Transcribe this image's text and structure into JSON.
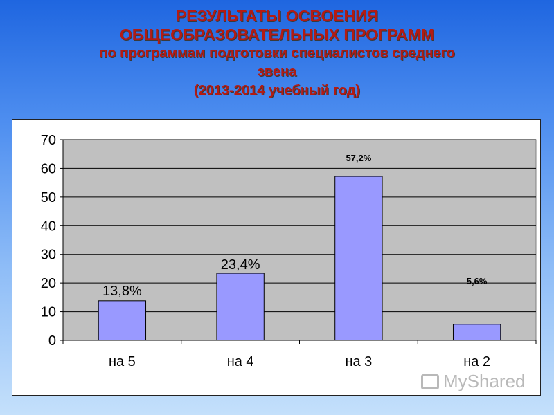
{
  "title": {
    "line1": "РЕЗУЛЬТАТЫ ОСВОЕНИЯ",
    "line2": "ОБЩЕОБРАЗОВАТЕЛЬНЫХ ПРОГРАММ",
    "line3": "по программам подготовки специалистов среднего",
    "line4": "звена",
    "line5": "(2013-2014 учебный год)"
  },
  "watermark": "MyShared",
  "colors": {
    "bar": "#9999ff",
    "plot_bg": "#c0c0c0",
    "title": "#b31b14"
  },
  "chart_data": {
    "type": "bar",
    "categories": [
      "на 5",
      "на 4",
      "на 3",
      "на 2"
    ],
    "values": [
      13.8,
      23.4,
      57.2,
      5.6
    ],
    "data_labels": [
      "13,8%",
      "23,4%",
      "57,2%",
      "5,6%"
    ],
    "ylim": [
      0,
      70
    ],
    "yticks": [
      0,
      10,
      20,
      30,
      40,
      50,
      60,
      70
    ],
    "grid": true,
    "legend": "none"
  }
}
